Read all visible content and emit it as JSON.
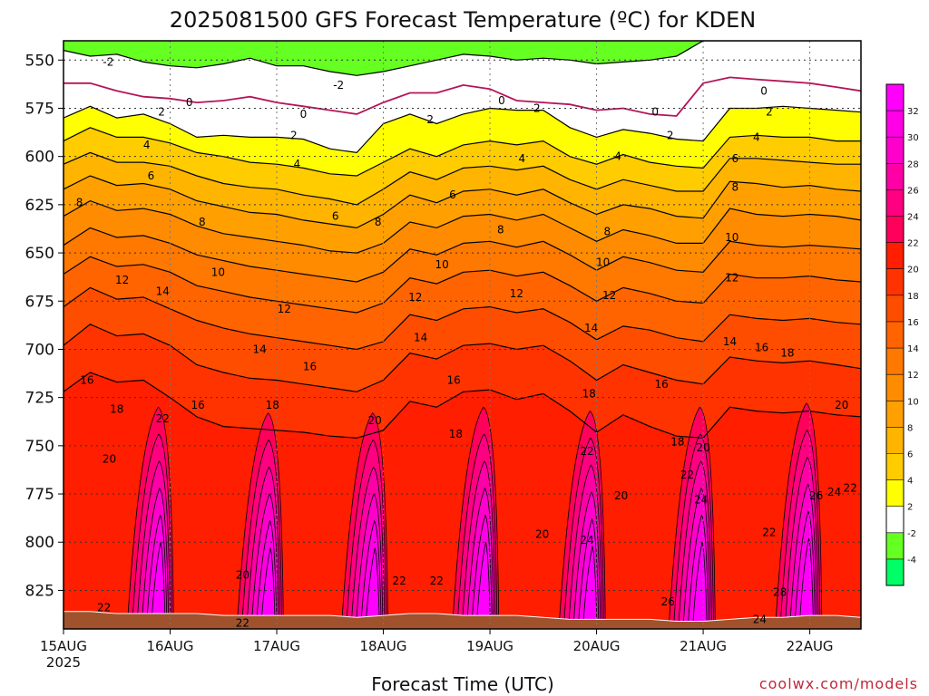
{
  "title": "2025081500 GFS Forecast Temperature (ºC) for KDEN",
  "xlabel": "Forecast Time (UTC)",
  "credit": "coolwx.com/models",
  "chart_data": {
    "type": "heatmap",
    "title": "2025081500 GFS Forecast Temperature (ºC) for KDEN",
    "xlabel": "Forecast Time (UTC)",
    "ylabel": "",
    "y_axis": {
      "ticks": [
        550,
        575,
        600,
        625,
        650,
        675,
        700,
        725,
        750,
        775,
        800,
        825
      ],
      "range": [
        540,
        845
      ]
    },
    "x_axis": {
      "ticks": [
        {
          "label": "15AUG",
          "sub": "2025",
          "day": 15
        },
        {
          "label": "16AUG",
          "sub": "",
          "day": 16
        },
        {
          "label": "17AUG",
          "sub": "",
          "day": 17
        },
        {
          "label": "18AUG",
          "sub": "",
          "day": 18
        },
        {
          "label": "19AUG",
          "sub": "",
          "day": 19
        },
        {
          "label": "20AUG",
          "sub": "",
          "day": 20
        },
        {
          "label": "21AUG",
          "sub": "",
          "day": 21
        },
        {
          "label": "22AUG",
          "sub": "",
          "day": 22
        }
      ],
      "range": [
        15.0,
        22.48
      ]
    },
    "grid": true,
    "colorbar": {
      "ticks": [
        32,
        30,
        28,
        26,
        24,
        22,
        20,
        18,
        16,
        14,
        12,
        10,
        8,
        6,
        4,
        2,
        -2,
        -4
      ],
      "levels": [
        {
          "min": 32,
          "color": "#ff00ff"
        },
        {
          "min": 30,
          "color": "#ff00e6"
        },
        {
          "min": 28,
          "color": "#ff00cc"
        },
        {
          "min": 26,
          "color": "#ff00a6"
        },
        {
          "min": 24,
          "color": "#ff0080"
        },
        {
          "min": 22,
          "color": "#ff005a"
        },
        {
          "min": 20,
          "color": "#ff1e00"
        },
        {
          "min": 18,
          "color": "#ff3300"
        },
        {
          "min": 16,
          "color": "#ff4d00"
        },
        {
          "min": 14,
          "color": "#ff6400"
        },
        {
          "min": 12,
          "color": "#ff7800"
        },
        {
          "min": 10,
          "color": "#ff8c00"
        },
        {
          "min": 8,
          "color": "#ffa000"
        },
        {
          "min": 6,
          "color": "#ffb400"
        },
        {
          "min": 4,
          "color": "#ffcc00"
        },
        {
          "min": 2,
          "color": "#ffff00"
        },
        {
          "min": -2,
          "color": "#ffffff"
        },
        {
          "min": -4,
          "color": "#66ff22"
        },
        {
          "min": -6,
          "color": "#00ff66"
        }
      ]
    },
    "isotherm_pressure_hPa": {
      "x_day": [
        15.0,
        15.25,
        15.5,
        15.75,
        16.0,
        16.25,
        16.5,
        16.75,
        17.0,
        17.25,
        17.5,
        17.75,
        18.0,
        18.25,
        18.5,
        18.75,
        19.0,
        19.25,
        19.5,
        19.75,
        20.0,
        20.25,
        20.5,
        20.75,
        21.0,
        21.25,
        21.5,
        21.75,
        22.0,
        22.25,
        22.48
      ],
      "-2": [
        545,
        548,
        547,
        551,
        553,
        554,
        552,
        549,
        553,
        553,
        556,
        558,
        556,
        553,
        550,
        547,
        548,
        550,
        549,
        550,
        552,
        551,
        550,
        548,
        540,
        540,
        540,
        540,
        540,
        540,
        540
      ],
      "0": [
        562,
        562,
        566,
        569,
        570,
        572,
        571,
        569,
        572,
        574,
        576,
        578,
        572,
        567,
        567,
        563,
        565,
        571,
        572,
        573,
        576,
        575,
        578,
        579,
        562,
        559,
        560,
        561,
        562,
        564,
        566
      ],
      "2": [
        580,
        574,
        580,
        578,
        583,
        590,
        589,
        590,
        590,
        591,
        596,
        598,
        583,
        578,
        583,
        578,
        575,
        576,
        576,
        585,
        590,
        586,
        588,
        591,
        592,
        575,
        575,
        574,
        575,
        576,
        577
      ],
      "4": [
        592,
        585,
        590,
        590,
        593,
        598,
        600,
        603,
        604,
        606,
        609,
        610,
        603,
        596,
        600,
        594,
        592,
        594,
        592,
        600,
        604,
        599,
        603,
        605,
        606,
        590,
        589,
        590,
        590,
        592,
        592
      ],
      "6": [
        604,
        598,
        603,
        603,
        605,
        610,
        614,
        616,
        617,
        620,
        622,
        625,
        617,
        608,
        612,
        606,
        605,
        607,
        605,
        612,
        617,
        612,
        615,
        618,
        618,
        601,
        601,
        602,
        603,
        604,
        604
      ],
      "8": [
        617,
        610,
        615,
        614,
        617,
        623,
        626,
        629,
        630,
        633,
        635,
        637,
        630,
        620,
        624,
        618,
        617,
        620,
        617,
        624,
        630,
        625,
        627,
        631,
        632,
        613,
        614,
        616,
        615,
        617,
        618
      ],
      "10": [
        631,
        623,
        628,
        627,
        630,
        636,
        640,
        642,
        644,
        646,
        649,
        650,
        645,
        634,
        637,
        631,
        630,
        633,
        630,
        637,
        644,
        638,
        641,
        645,
        645,
        627,
        630,
        631,
        630,
        631,
        633
      ],
      "12": [
        646,
        637,
        642,
        641,
        645,
        651,
        654,
        657,
        659,
        661,
        663,
        665,
        660,
        648,
        651,
        645,
        644,
        647,
        644,
        651,
        659,
        652,
        655,
        659,
        660,
        644,
        646,
        647,
        646,
        647,
        648
      ],
      "14": [
        661,
        652,
        657,
        656,
        660,
        667,
        670,
        673,
        675,
        677,
        679,
        681,
        676,
        663,
        666,
        660,
        659,
        662,
        660,
        667,
        675,
        668,
        671,
        675,
        676,
        661,
        663,
        663,
        662,
        664,
        665
      ],
      "16": [
        678,
        668,
        674,
        673,
        679,
        685,
        689,
        692,
        694,
        696,
        698,
        700,
        696,
        682,
        685,
        679,
        678,
        681,
        679,
        686,
        695,
        688,
        690,
        694,
        696,
        682,
        684,
        685,
        684,
        686,
        687
      ],
      "18": [
        698,
        687,
        693,
        692,
        698,
        708,
        712,
        715,
        716,
        718,
        720,
        722,
        716,
        702,
        705,
        698,
        697,
        700,
        698,
        706,
        716,
        708,
        712,
        716,
        718,
        704,
        706,
        707,
        706,
        708,
        710
      ],
      "20": [
        722,
        712,
        717,
        716,
        725,
        735,
        740,
        741,
        742,
        743,
        745,
        746,
        742,
        727,
        730,
        722,
        721,
        726,
        723,
        732,
        743,
        734,
        740,
        745,
        746,
        730,
        732,
        733,
        732,
        734,
        735
      ]
    },
    "surface_pressure_hPa": [
      836,
      836,
      837,
      837,
      837,
      837,
      838,
      838,
      838,
      838,
      838,
      839,
      838,
      837,
      837,
      838,
      838,
      838,
      839,
      840,
      840,
      840,
      840,
      841,
      841,
      840,
      839,
      839,
      838,
      838,
      839
    ],
    "contour_labels": [
      {
        "text": "-2",
        "day": 15.42,
        "p": 551
      },
      {
        "text": "-2",
        "day": 17.58,
        "p": 563
      },
      {
        "text": "0",
        "day": 16.18,
        "p": 572
      },
      {
        "text": "0",
        "day": 17.25,
        "p": 578
      },
      {
        "text": "0",
        "day": 19.11,
        "p": 571
      },
      {
        "text": "0",
        "day": 20.55,
        "p": 577
      },
      {
        "text": "0",
        "day": 21.57,
        "p": 566
      },
      {
        "text": "2",
        "day": 15.92,
        "p": 577
      },
      {
        "text": "2",
        "day": 17.16,
        "p": 589
      },
      {
        "text": "2",
        "day": 18.44,
        "p": 581
      },
      {
        "text": "2",
        "day": 19.44,
        "p": 575
      },
      {
        "text": "2",
        "day": 20.69,
        "p": 589
      },
      {
        "text": "2",
        "day": 21.62,
        "p": 577
      },
      {
        "text": "4",
        "day": 15.78,
        "p": 594
      },
      {
        "text": "4",
        "day": 17.19,
        "p": 604
      },
      {
        "text": "4",
        "day": 19.3,
        "p": 601
      },
      {
        "text": "4",
        "day": 20.2,
        "p": 600
      },
      {
        "text": "4",
        "day": 21.5,
        "p": 590
      },
      {
        "text": "6",
        "day": 15.82,
        "p": 610
      },
      {
        "text": "6",
        "day": 17.55,
        "p": 631
      },
      {
        "text": "6",
        "day": 18.65,
        "p": 620
      },
      {
        "text": "6",
        "day": 21.3,
        "p": 601
      },
      {
        "text": "8",
        "day": 15.15,
        "p": 624
      },
      {
        "text": "8",
        "day": 16.3,
        "p": 634
      },
      {
        "text": "8",
        "day": 17.95,
        "p": 634
      },
      {
        "text": "8",
        "day": 19.1,
        "p": 638
      },
      {
        "text": "8",
        "day": 20.1,
        "p": 639
      },
      {
        "text": "8",
        "day": 21.3,
        "p": 616
      },
      {
        "text": "10",
        "day": 16.45,
        "p": 660
      },
      {
        "text": "10",
        "day": 18.55,
        "p": 656
      },
      {
        "text": "10",
        "day": 20.06,
        "p": 655
      },
      {
        "text": "10",
        "day": 21.27,
        "p": 642
      },
      {
        "text": "12",
        "day": 15.55,
        "p": 664
      },
      {
        "text": "12",
        "day": 17.07,
        "p": 679
      },
      {
        "text": "12",
        "day": 18.3,
        "p": 673
      },
      {
        "text": "12",
        "day": 19.25,
        "p": 671
      },
      {
        "text": "12",
        "day": 20.12,
        "p": 672
      },
      {
        "text": "12",
        "day": 21.27,
        "p": 663
      },
      {
        "text": "14",
        "day": 15.93,
        "p": 670
      },
      {
        "text": "14",
        "day": 16.84,
        "p": 700
      },
      {
        "text": "14",
        "day": 18.35,
        "p": 694
      },
      {
        "text": "14",
        "day": 19.95,
        "p": 689
      },
      {
        "text": "14",
        "day": 21.25,
        "p": 696
      },
      {
        "text": "16",
        "day": 15.22,
        "p": 716
      },
      {
        "text": "16",
        "day": 16.26,
        "p": 729
      },
      {
        "text": "16",
        "day": 17.31,
        "p": 709
      },
      {
        "text": "16",
        "day": 18.66,
        "p": 716
      },
      {
        "text": "16",
        "day": 20.61,
        "p": 718
      },
      {
        "text": "16",
        "day": 21.55,
        "p": 699
      },
      {
        "text": "18",
        "day": 15.5,
        "p": 731
      },
      {
        "text": "18",
        "day": 16.96,
        "p": 729
      },
      {
        "text": "18",
        "day": 18.68,
        "p": 744
      },
      {
        "text": "18",
        "day": 19.93,
        "p": 723
      },
      {
        "text": "18",
        "day": 20.76,
        "p": 748
      },
      {
        "text": "18",
        "day": 21.79,
        "p": 702
      },
      {
        "text": "20",
        "day": 15.43,
        "p": 757
      },
      {
        "text": "20",
        "day": 17.92,
        "p": 737
      },
      {
        "text": "20",
        "day": 16.68,
        "p": 817
      },
      {
        "text": "20",
        "day": 19.49,
        "p": 796
      },
      {
        "text": "20",
        "day": 20.23,
        "p": 776
      },
      {
        "text": "20",
        "day": 21.0,
        "p": 751
      },
      {
        "text": "20",
        "day": 22.3,
        "p": 729
      },
      {
        "text": "22",
        "day": 15.93,
        "p": 736
      },
      {
        "text": "22",
        "day": 15.38,
        "p": 834
      },
      {
        "text": "22",
        "day": 16.68,
        "p": 842
      },
      {
        "text": "22",
        "day": 18.15,
        "p": 820
      },
      {
        "text": "22",
        "day": 18.5,
        "p": 820
      },
      {
        "text": "22",
        "day": 19.91,
        "p": 753
      },
      {
        "text": "22",
        "day": 20.85,
        "p": 765
      },
      {
        "text": "22",
        "day": 21.62,
        "p": 795
      },
      {
        "text": "22",
        "day": 22.38,
        "p": 772
      },
      {
        "text": "24",
        "day": 19.91,
        "p": 799
      },
      {
        "text": "24",
        "day": 20.98,
        "p": 778
      },
      {
        "text": "24",
        "day": 21.53,
        "p": 840
      },
      {
        "text": "24",
        "day": 22.23,
        "p": 774
      },
      {
        "text": "26",
        "day": 20.67,
        "p": 831
      },
      {
        "text": "26",
        "day": 22.06,
        "p": 776
      },
      {
        "text": "28",
        "day": 21.72,
        "p": 826
      }
    ]
  }
}
